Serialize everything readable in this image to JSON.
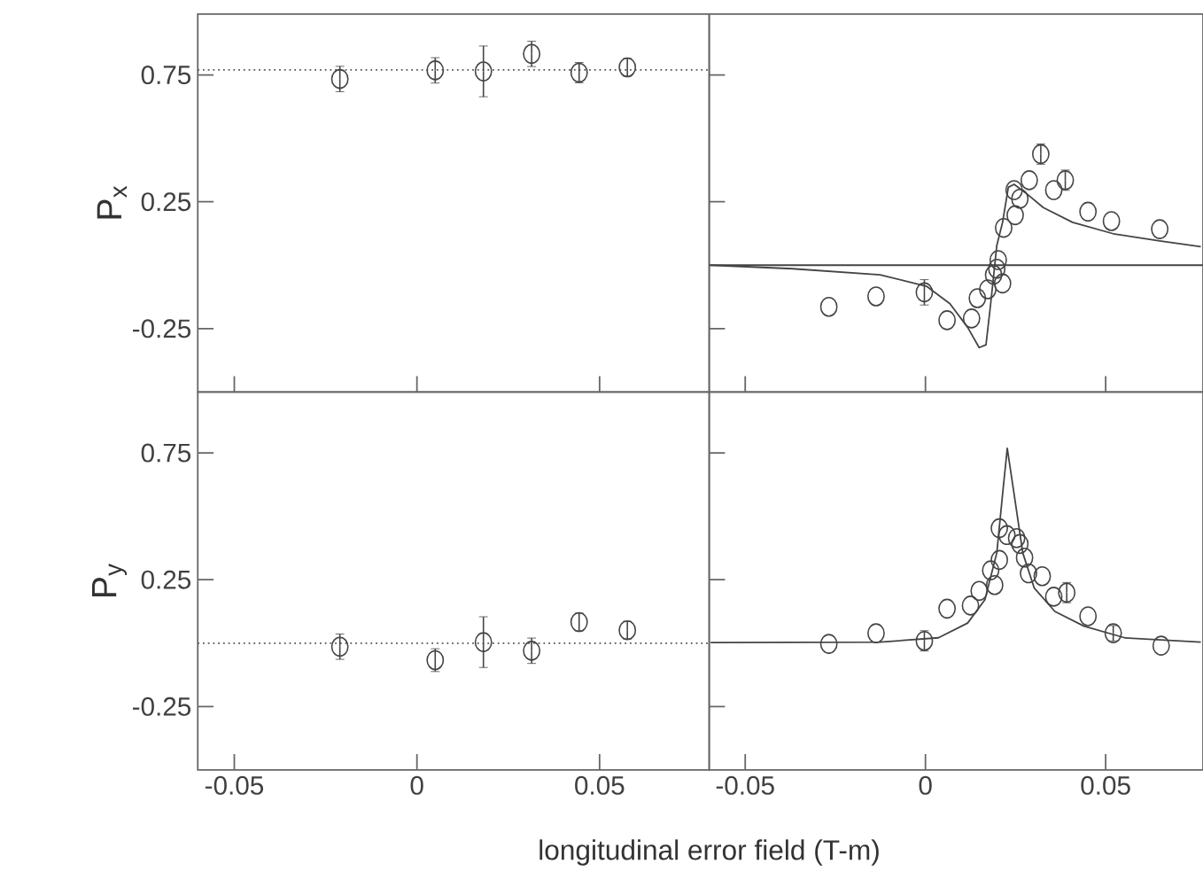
{
  "chart_data": [
    {
      "type": "scatter",
      "ylabel": "P$_{x}$",
      "xlim": [
        -0.06,
        0.08
      ],
      "ylim": [
        -0.5,
        0.99
      ],
      "xticks": [
        -0.05,
        0,
        0.05
      ],
      "yticks": [
        -0.25,
        0.25,
        0.75
      ],
      "tick_labels": "y",
      "marker": "circle",
      "ref_lines": [
        {
          "axis": "y",
          "value": 0.77,
          "line_style": "dotted",
          "color": "#555555"
        }
      ],
      "series": [
        {
          "color": "#444444",
          "x": [
            -0.0211,
            0.005,
            0.0182,
            0.0314,
            0.0444,
            0.0576
          ],
          "values": [
            0.734,
            0.768,
            0.764,
            0.833,
            0.759,
            0.78
          ],
          "errors": [
            0.05,
            0.05,
            0.1,
            0.05,
            0.04,
            0.035
          ]
        }
      ]
    },
    {
      "type": "scatter",
      "xlim": [
        -0.06,
        0.077
      ],
      "ylim": [
        -0.5,
        0.99
      ],
      "xticks": [
        -0.05,
        0,
        0.05
      ],
      "yticks": [
        -0.25,
        0.25,
        0.75
      ],
      "tick_labels": false,
      "marker": "circle",
      "ref_lines": [
        {
          "axis": "y",
          "value": 0,
          "line_style": "solid",
          "color": "#444444"
        }
      ],
      "series": [
        {
          "color": "#444444",
          "x": [
            -0.0268,
            -0.0137,
            -0.0003,
            0.006,
            0.0128,
            0.0144,
            0.0173,
            0.0189,
            0.0202,
            0.0214,
            0.0198,
            0.0217,
            0.0249,
            0.0262,
            0.0246,
            0.0288,
            0.032,
            0.0356,
            0.0388,
            0.0451,
            0.0516,
            0.065
          ],
          "values": [
            -0.164,
            -0.123,
            -0.107,
            -0.217,
            -0.21,
            -0.13,
            -0.095,
            -0.038,
            0.02,
            -0.072,
            -0.014,
            0.147,
            0.197,
            0.262,
            0.296,
            0.335,
            0.438,
            0.296,
            0.335,
            0.211,
            0.174,
            0.142
          ],
          "errors": [
            null,
            null,
            0.05,
            null,
            null,
            null,
            null,
            null,
            null,
            null,
            null,
            null,
            null,
            null,
            null,
            null,
            0.04,
            null,
            0.04,
            null,
            null,
            null
          ]
        },
        {
          "type": "line",
          "marker": "none",
          "color": "#444444",
          "x": [
            -0.0596,
            -0.0369,
            -0.0126,
            0.0003,
            0.0068,
            0.0117,
            0.0149,
            0.0168,
            0.0181,
            0.0198,
            0.0214,
            0.023,
            0.0246,
            0.0278,
            0.0327,
            0.0408,
            0.0521,
            0.065,
            0.0764
          ],
          "values": [
            0,
            -0.014,
            -0.038,
            -0.083,
            -0.152,
            -0.245,
            -0.325,
            -0.314,
            -0.152,
            0.078,
            0.169,
            0.307,
            0.319,
            0.285,
            0.227,
            0.169,
            0.124,
            0.096,
            0.073
          ]
        }
      ]
    },
    {
      "type": "scatter",
      "ylabel": "P$_{y}$",
      "xlabel": "longitudinal error field (T-m)",
      "xlim": [
        -0.06,
        0.08
      ],
      "ylim": [
        -0.5,
        0.99
      ],
      "xticks": [
        -0.05,
        0,
        0.05
      ],
      "yticks": [
        -0.25,
        0.25,
        0.75
      ],
      "marker": "circle",
      "ref_lines": [
        {
          "axis": "y",
          "value": 0,
          "line_style": "dotted",
          "color": "#555555"
        }
      ],
      "series": [
        {
          "color": "#444444",
          "x": [
            -0.0211,
            0.005,
            0.0182,
            0.0314,
            0.0444,
            0.0576
          ],
          "values": [
            -0.014,
            -0.067,
            0.004,
            -0.03,
            0.083,
            0.051
          ],
          "errors": [
            0.05,
            0.045,
            0.1,
            0.05,
            0.035,
            0.035
          ]
        }
      ]
    },
    {
      "type": "scatter",
      "xlim": [
        -0.06,
        0.077
      ],
      "ylim": [
        -0.5,
        0.99
      ],
      "xticks": [
        -0.05,
        0,
        0.05
      ],
      "yticks": [
        -0.25,
        0.25,
        0.75
      ],
      "tick_labels": "x",
      "marker": "circle",
      "series": [
        {
          "color": "#444444",
          "x": [
            -0.0268,
            -0.0137,
            -0.0003,
            0.006,
            0.0125,
            0.0149,
            0.0181,
            0.0192,
            0.0205,
            0.0205,
            0.0226,
            0.0253,
            0.0262,
            0.0275,
            0.0286,
            0.0324,
            0.0356,
            0.0392,
            0.0451,
            0.0521,
            0.0654
          ],
          "values": [
            -0.003,
            0.039,
            0.009,
            0.136,
            0.148,
            0.206,
            0.287,
            0.229,
            0.328,
            0.453,
            0.426,
            0.414,
            0.391,
            0.337,
            0.275,
            0.264,
            0.183,
            0.199,
            0.106,
            0.039,
            -0.01
          ],
          "errors": [
            null,
            null,
            0.04,
            null,
            null,
            null,
            null,
            null,
            null,
            null,
            null,
            null,
            null,
            null,
            null,
            null,
            null,
            0.04,
            null,
            0.03,
            null
          ]
        },
        {
          "type": "line",
          "marker": "none",
          "color": "#444444",
          "x": [
            -0.0596,
            -0.0126,
            0.0036,
            0.0117,
            0.0165,
            0.0198,
            0.0214,
            0.0227,
            0.0246,
            0.027,
            0.0302,
            0.0359,
            0.044,
            0.0553,
            0.0764
          ],
          "values": [
            0.002,
            0.004,
            0.021,
            0.079,
            0.171,
            0.356,
            0.587,
            0.768,
            0.587,
            0.356,
            0.217,
            0.125,
            0.067,
            0.021,
            0.004
          ]
        }
      ]
    }
  ]
}
